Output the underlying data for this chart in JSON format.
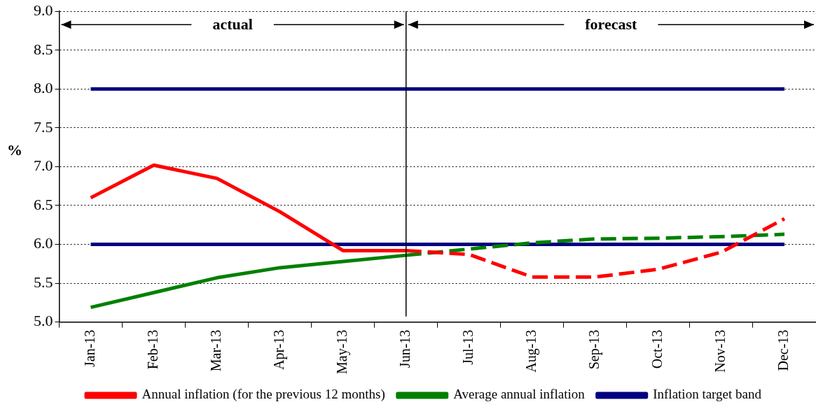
{
  "chart_data": {
    "type": "line",
    "ylabel": "%",
    "categories": [
      "Jan-13",
      "Feb-13",
      "Mar-13",
      "Apr-13",
      "May-13",
      "Jun-13",
      "Jul-13",
      "Aug-13",
      "Sep-13",
      "Oct-13",
      "Nov-13",
      "Dec-13"
    ],
    "series": [
      {
        "name": "Annual inflation (for the previous 12 months)",
        "color": "#ff0000",
        "line_style": "solid",
        "values": [
          6.6,
          7.02,
          6.85,
          6.42,
          5.92,
          5.92,
          null,
          null,
          null,
          null,
          null,
          null
        ]
      },
      {
        "color": "#ff0000",
        "line_style": "dashed",
        "values": [
          null,
          null,
          null,
          null,
          null,
          5.92,
          5.87,
          5.58,
          5.58,
          5.68,
          5.9,
          6.33
        ]
      },
      {
        "name": "Average annual inflation",
        "color": "#008000",
        "line_style": "solid",
        "values": [
          5.19,
          5.38,
          5.57,
          5.7,
          5.78,
          5.86,
          null,
          null,
          null,
          null,
          null,
          null
        ]
      },
      {
        "color": "#008000",
        "line_style": "dashed",
        "values": [
          null,
          null,
          null,
          null,
          null,
          5.86,
          5.94,
          6.02,
          6.07,
          6.08,
          6.1,
          6.13
        ]
      },
      {
        "name": "Inflation target band",
        "color": "#000080",
        "line_style": "solid",
        "values": [
          8,
          8,
          8,
          8,
          8,
          8,
          8,
          8,
          8,
          8,
          8,
          8
        ]
      },
      {
        "color": "#000080",
        "line_style": "solid",
        "values": [
          6,
          6,
          6,
          6,
          6,
          6,
          6,
          6,
          6,
          6,
          6,
          6
        ]
      }
    ],
    "ylim": [
      5,
      9
    ],
    "yticks": [
      {
        "value": 5,
        "label": "5.0"
      },
      {
        "value": 5.5,
        "label": "5.5"
      },
      {
        "value": 6,
        "label": "6.0"
      },
      {
        "value": 6.5,
        "label": "6.5"
      },
      {
        "value": 7,
        "label": "7.0"
      },
      {
        "value": 7.5,
        "label": "7.5"
      },
      {
        "value": 8,
        "label": "8.0"
      },
      {
        "value": 8.5,
        "label": "8.5"
      },
      {
        "value": 9,
        "label": "9.0"
      }
    ],
    "grid": "y",
    "legend": "bottom",
    "marker": "none",
    "ref_lines": [
      {
        "axis": "x",
        "value": "Jun-13",
        "color": "#000000"
      }
    ],
    "annotations": [
      "actual",
      "forecast"
    ]
  }
}
